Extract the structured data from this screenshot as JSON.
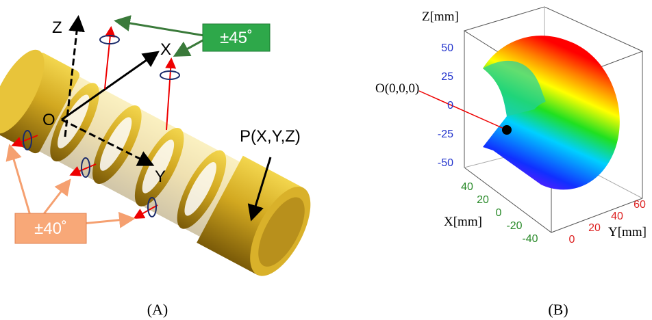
{
  "panel_a": {
    "axis_z": "Z",
    "axis_x": "X",
    "axis_y": "Y",
    "origin": "O",
    "end_point": "P(X,Y,Z)",
    "rotation_upper": "±45˚",
    "rotation_lower": "±40˚",
    "caption": "(A)"
  },
  "panel_b": {
    "z_axis_title": "Z[mm]",
    "x_axis_title": "X[mm]",
    "y_axis_title": "Y[mm]",
    "origin_label": "O(0,0,0)",
    "z_ticks": [
      50,
      25,
      0,
      -25,
      -50
    ],
    "x_ticks": [
      40,
      20,
      0,
      -20,
      -40
    ],
    "y_ticks": [
      0,
      20,
      40,
      60
    ],
    "caption": "(B)"
  }
}
